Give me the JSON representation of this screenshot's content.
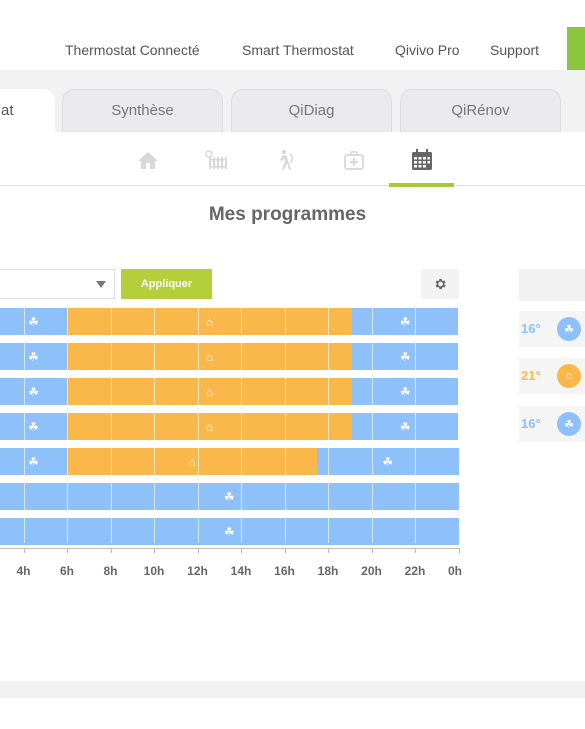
{
  "nav": {
    "links": [
      "Thermostat Connecté",
      "Smart Thermostat",
      "Qivivo Pro",
      "Support"
    ],
    "cta_color": "#8cc63f"
  },
  "tabs": [
    {
      "label": "at",
      "active": true
    },
    {
      "label": "Synthèse",
      "active": false
    },
    {
      "label": "QiDiag",
      "active": false
    },
    {
      "label": "QiRénov",
      "active": false
    }
  ],
  "icon_tabs": [
    {
      "icon": "home-icon",
      "active": false
    },
    {
      "icon": "radiator-icon",
      "active": false
    },
    {
      "icon": "away-walking-icon",
      "active": false
    },
    {
      "icon": "first-aid-kit-icon",
      "active": false
    },
    {
      "icon": "calendar-icon",
      "active": true
    }
  ],
  "page_title": "Mes programmes",
  "controls": {
    "select_value": "",
    "apply_label": "Appliquer",
    "settings_icon": "gear-icon"
  },
  "schedule": {
    "colors": {
      "eco": "#8ec1fa",
      "comfort": "#fbb84a"
    },
    "rows": [
      [
        {
          "mode": "eco",
          "from": 2.5,
          "to": 6
        },
        {
          "mode": "comfort",
          "from": 6,
          "to": 19.1
        },
        {
          "mode": "eco",
          "from": 19.1,
          "to": 24
        }
      ],
      [
        {
          "mode": "eco",
          "from": 2.5,
          "to": 6
        },
        {
          "mode": "comfort",
          "from": 6,
          "to": 19.1
        },
        {
          "mode": "eco",
          "from": 19.1,
          "to": 24
        }
      ],
      [
        {
          "mode": "eco",
          "from": 2.5,
          "to": 6
        },
        {
          "mode": "comfort",
          "from": 6,
          "to": 19.1
        },
        {
          "mode": "eco",
          "from": 19.1,
          "to": 24
        }
      ],
      [
        {
          "mode": "eco",
          "from": 2.5,
          "to": 6
        },
        {
          "mode": "comfort",
          "from": 6,
          "to": 19.1
        },
        {
          "mode": "eco",
          "from": 19.1,
          "to": 24
        }
      ],
      [
        {
          "mode": "eco",
          "from": 2.5,
          "to": 6
        },
        {
          "mode": "comfort",
          "from": 6,
          "to": 17.5
        },
        {
          "mode": "eco",
          "from": 17.5,
          "to": 24
        }
      ],
      [
        {
          "mode": "eco",
          "from": 2.5,
          "to": 24
        }
      ],
      [
        {
          "mode": "eco",
          "from": 2.5,
          "to": 24
        }
      ]
    ],
    "tick_labels": [
      "4h",
      "6h",
      "8h",
      "10h",
      "12h",
      "14h",
      "16h",
      "18h",
      "20h",
      "22h",
      "0h"
    ],
    "tick_hours": [
      4,
      6,
      8,
      10,
      12,
      14,
      16,
      18,
      20,
      22,
      24
    ]
  },
  "temperatures": [
    {
      "value": "16°",
      "mode": "eco",
      "color": "#8ec1fa"
    },
    {
      "value": "21°",
      "mode": "comfort",
      "color": "#fbb84a"
    },
    {
      "value": "16°",
      "mode": "eco",
      "color": "#8ec1fa"
    }
  ]
}
